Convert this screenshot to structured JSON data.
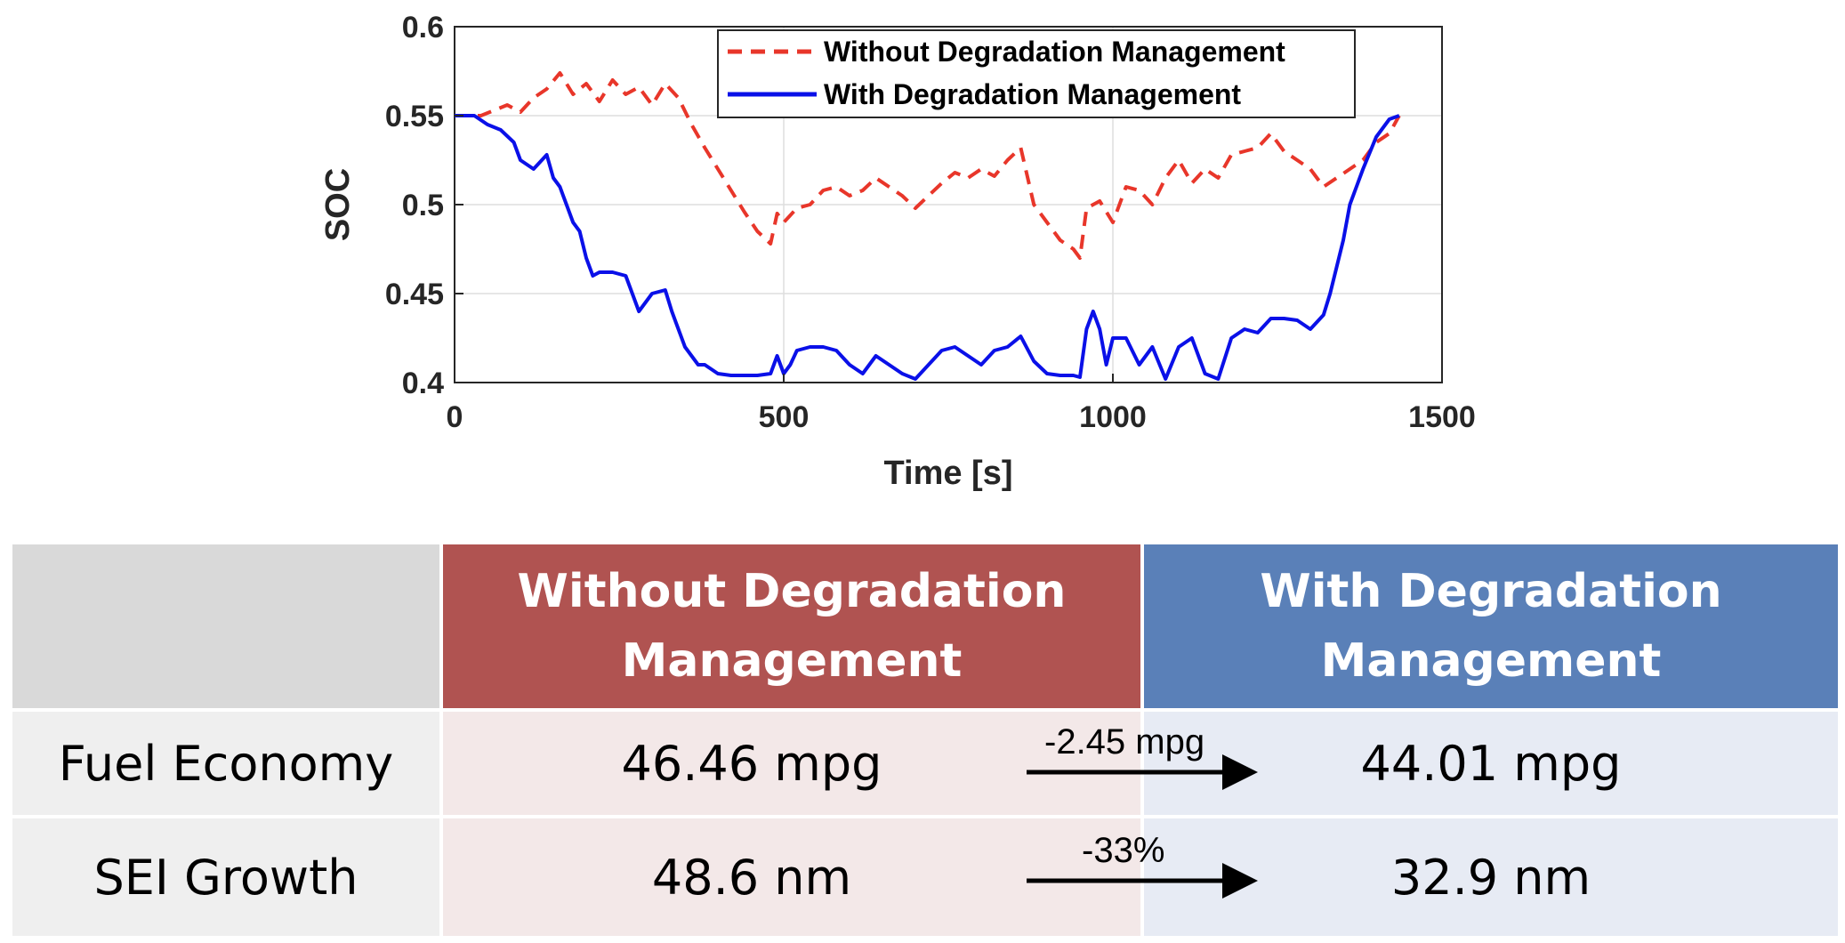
{
  "chart_data": {
    "type": "line",
    "xlabel": "Time [s]",
    "ylabel": "SOC",
    "xlim": [
      0,
      1500
    ],
    "ylim": [
      0.4,
      0.6
    ],
    "xticks": [
      "0",
      "500",
      "1000",
      "1500"
    ],
    "yticks": [
      "0.4",
      "0.45",
      "0.5",
      "0.55",
      "0.6"
    ],
    "grid": true,
    "legend_position": "top-right",
    "series": [
      {
        "name": "Without Degradation Management",
        "color": "#e8362a",
        "style": "dashed",
        "x": [
          0,
          40,
          60,
          80,
          100,
          120,
          140,
          160,
          180,
          200,
          220,
          240,
          260,
          280,
          300,
          320,
          340,
          360,
          380,
          400,
          420,
          440,
          460,
          480,
          490,
          500,
          520,
          540,
          560,
          580,
          600,
          620,
          640,
          660,
          680,
          700,
          720,
          740,
          760,
          780,
          800,
          820,
          840,
          860,
          880,
          900,
          920,
          940,
          950,
          960,
          980,
          1000,
          1020,
          1040,
          1060,
          1080,
          1100,
          1120,
          1140,
          1160,
          1180,
          1200,
          1220,
          1240,
          1260,
          1280,
          1300,
          1320,
          1340,
          1360,
          1380,
          1400,
          1420,
          1435
        ],
        "values": [
          0.55,
          0.55,
          0.553,
          0.556,
          0.552,
          0.56,
          0.565,
          0.574,
          0.562,
          0.568,
          0.558,
          0.57,
          0.562,
          0.566,
          0.556,
          0.568,
          0.56,
          0.545,
          0.532,
          0.52,
          0.508,
          0.496,
          0.485,
          0.478,
          0.495,
          0.49,
          0.498,
          0.5,
          0.508,
          0.51,
          0.505,
          0.508,
          0.515,
          0.51,
          0.505,
          0.498,
          0.505,
          0.512,
          0.518,
          0.515,
          0.52,
          0.516,
          0.525,
          0.532,
          0.5,
          0.49,
          0.48,
          0.475,
          0.47,
          0.498,
          0.502,
          0.49,
          0.51,
          0.508,
          0.5,
          0.515,
          0.525,
          0.512,
          0.52,
          0.515,
          0.528,
          0.53,
          0.532,
          0.54,
          0.53,
          0.525,
          0.52,
          0.51,
          0.515,
          0.52,
          0.525,
          0.535,
          0.54,
          0.55
        ]
      },
      {
        "name": "With Degradation Management",
        "color": "#0a10e8",
        "style": "solid",
        "x": [
          0,
          30,
          50,
          70,
          90,
          100,
          120,
          140,
          150,
          160,
          170,
          180,
          190,
          200,
          210,
          220,
          240,
          260,
          280,
          290,
          300,
          320,
          330,
          340,
          350,
          360,
          370,
          380,
          400,
          420,
          440,
          460,
          480,
          490,
          500,
          510,
          520,
          540,
          560,
          580,
          600,
          620,
          640,
          660,
          680,
          700,
          720,
          740,
          760,
          780,
          800,
          820,
          840,
          860,
          880,
          900,
          920,
          940,
          950,
          960,
          970,
          980,
          990,
          1000,
          1020,
          1040,
          1060,
          1080,
          1100,
          1120,
          1140,
          1160,
          1180,
          1200,
          1220,
          1240,
          1260,
          1280,
          1300,
          1320,
          1330,
          1340,
          1350,
          1360,
          1380,
          1400,
          1420,
          1435
        ],
        "values": [
          0.55,
          0.55,
          0.545,
          0.542,
          0.535,
          0.525,
          0.52,
          0.528,
          0.515,
          0.51,
          0.5,
          0.49,
          0.485,
          0.47,
          0.46,
          0.462,
          0.462,
          0.46,
          0.44,
          0.445,
          0.45,
          0.452,
          0.44,
          0.43,
          0.42,
          0.415,
          0.41,
          0.41,
          0.405,
          0.404,
          0.404,
          0.404,
          0.405,
          0.415,
          0.405,
          0.41,
          0.418,
          0.42,
          0.42,
          0.418,
          0.41,
          0.405,
          0.415,
          0.41,
          0.405,
          0.402,
          0.41,
          0.418,
          0.42,
          0.415,
          0.41,
          0.418,
          0.42,
          0.426,
          0.412,
          0.405,
          0.404,
          0.404,
          0.403,
          0.43,
          0.44,
          0.43,
          0.41,
          0.425,
          0.425,
          0.41,
          0.42,
          0.402,
          0.42,
          0.425,
          0.405,
          0.402,
          0.425,
          0.43,
          0.428,
          0.436,
          0.436,
          0.435,
          0.43,
          0.438,
          0.45,
          0.465,
          0.48,
          0.5,
          0.52,
          0.538,
          0.548,
          0.55
        ]
      }
    ]
  },
  "table": {
    "headers": [
      {
        "line1": "Without Degradation",
        "line2": "Management",
        "color": "#b05351"
      },
      {
        "line1": "With Degradation",
        "line2": "Management",
        "color": "#5a80b8"
      }
    ],
    "rows": [
      {
        "label": "Fuel Economy",
        "without": "46.46 mpg",
        "with": "44.01 mpg",
        "change": "-2.45 mpg"
      },
      {
        "label": "SEI Growth",
        "without": "48.6 nm",
        "with": "32.9 nm",
        "change": "-33%"
      }
    ]
  }
}
